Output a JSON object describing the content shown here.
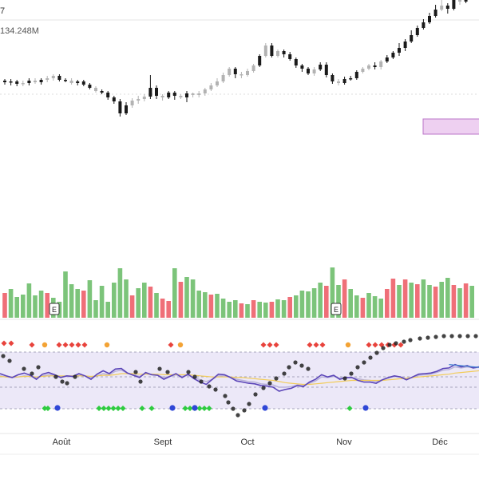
{
  "header": {
    "title_fragment": "7",
    "volume_label": "134.248M"
  },
  "x_axis": {
    "months": [
      "Août",
      "Sept",
      "Oct",
      "Nov",
      "Déc"
    ]
  },
  "colors": {
    "up": "#1a1a1a",
    "down": "#b3b3b3",
    "vol_up": "#7cc47a",
    "vol_down": "#ef6f78",
    "band": "#ece8f8",
    "line_primary": "#5b45b8",
    "line_secondary": "#b7b0d8",
    "line_avg": "#f2cc5a",
    "line_blue": "#3f7fd0",
    "highlight_fill": "#ecc8ef",
    "highlight_stroke": "#b05cbf",
    "dot_red": "#e8433c",
    "dot_orange": "#f3a335",
    "dot_green": "#2ecc40",
    "dot_blue": "#2f47d6",
    "dot_black": "#222222"
  },
  "chart_data": [
    {
      "type": "candlestick",
      "title": "",
      "volume_label": "134.248M",
      "event_markers": [
        "E",
        "E"
      ],
      "candles": [
        [
          0,
          289,
          287,
          284,
          291,
          1
        ],
        [
          1,
          287,
          288,
          283,
          291,
          1
        ],
        [
          2,
          288,
          285,
          282,
          290,
          1
        ],
        [
          3,
          285,
          286,
          282,
          289,
          0
        ],
        [
          4,
          286,
          289,
          283,
          292,
          1
        ],
        [
          5,
          289,
          287,
          285,
          292,
          0
        ],
        [
          6,
          287,
          290,
          284,
          292,
          1
        ],
        [
          7,
          290,
          292,
          287,
          295,
          0
        ],
        [
          8,
          292,
          295,
          289,
          297,
          0
        ],
        [
          9,
          295,
          290,
          288,
          297,
          1
        ],
        [
          10,
          290,
          289,
          287,
          292,
          1
        ],
        [
          11,
          289,
          286,
          284,
          292,
          0
        ],
        [
          12,
          286,
          288,
          283,
          290,
          1
        ],
        [
          13,
          288,
          284,
          282,
          290,
          1
        ],
        [
          14,
          284,
          280,
          278,
          286,
          1
        ],
        [
          15,
          280,
          276,
          274,
          282,
          0
        ],
        [
          16,
          276,
          274,
          272,
          278,
          1
        ],
        [
          17,
          274,
          268,
          265,
          276,
          1
        ],
        [
          18,
          268,
          263,
          260,
          270,
          1
        ],
        [
          19,
          263,
          248,
          244,
          266,
          1
        ],
        [
          20,
          248,
          258,
          246,
          262,
          1
        ],
        [
          21,
          258,
          264,
          255,
          267,
          0
        ],
        [
          22,
          264,
          266,
          260,
          270,
          0
        ],
        [
          23,
          266,
          269,
          263,
          272,
          0
        ],
        [
          24,
          269,
          280,
          266,
          296,
          1
        ],
        [
          25,
          280,
          270,
          266,
          283,
          1
        ],
        [
          26,
          270,
          268,
          264,
          272,
          0
        ],
        [
          27,
          268,
          274,
          266,
          276,
          1
        ],
        [
          28,
          274,
          270,
          265,
          276,
          1
        ],
        [
          29,
          270,
          268,
          266,
          272,
          0
        ],
        [
          30,
          268,
          273,
          262,
          276,
          1
        ],
        [
          31,
          273,
          271,
          268,
          274,
          0
        ],
        [
          32,
          271,
          273,
          268,
          276,
          0
        ],
        [
          33,
          273,
          278,
          270,
          280,
          0
        ],
        [
          34,
          278,
          283,
          276,
          286,
          0
        ],
        [
          35,
          283,
          288,
          281,
          292,
          0
        ],
        [
          36,
          288,
          296,
          286,
          299,
          0
        ],
        [
          37,
          296,
          304,
          294,
          306,
          0
        ],
        [
          38,
          304,
          297,
          292,
          306,
          1
        ],
        [
          39,
          297,
          296,
          292,
          300,
          0
        ],
        [
          40,
          296,
          301,
          294,
          304,
          0
        ],
        [
          41,
          301,
          308,
          299,
          310,
          0
        ],
        [
          42,
          308,
          320,
          306,
          322,
          1
        ],
        [
          43,
          320,
          333,
          318,
          336,
          0
        ],
        [
          44,
          333,
          320,
          318,
          336,
          1
        ],
        [
          45,
          320,
          326,
          318,
          328,
          0
        ],
        [
          46,
          326,
          322,
          318,
          328,
          1
        ],
        [
          47,
          322,
          316,
          314,
          325,
          1
        ],
        [
          48,
          316,
          308,
          305,
          318,
          1
        ],
        [
          49,
          308,
          304,
          300,
          310,
          1
        ],
        [
          50,
          304,
          298,
          296,
          306,
          1
        ],
        [
          51,
          298,
          303,
          295,
          306,
          0
        ],
        [
          52,
          303,
          309,
          301,
          312,
          1
        ],
        [
          53,
          309,
          296,
          293,
          312,
          1
        ],
        [
          54,
          296,
          288,
          285,
          298,
          1
        ],
        [
          55,
          288,
          286,
          283,
          291,
          0
        ],
        [
          56,
          286,
          291,
          284,
          294,
          1
        ],
        [
          57,
          291,
          292,
          289,
          295,
          1
        ],
        [
          58,
          292,
          300,
          290,
          302,
          1
        ],
        [
          59,
          300,
          304,
          298,
          306,
          0
        ],
        [
          60,
          304,
          308,
          302,
          310,
          0
        ],
        [
          61,
          308,
          306,
          303,
          312,
          1
        ],
        [
          62,
          306,
          313,
          303,
          315,
          0
        ],
        [
          63,
          313,
          318,
          311,
          321,
          1
        ],
        [
          64,
          318,
          324,
          316,
          326,
          1
        ],
        [
          65,
          324,
          330,
          320,
          336,
          1
        ],
        [
          66,
          330,
          338,
          326,
          341,
          1
        ],
        [
          67,
          338,
          346,
          336,
          352,
          1
        ],
        [
          68,
          346,
          355,
          344,
          358,
          1
        ],
        [
          69,
          355,
          362,
          353,
          366,
          1
        ],
        [
          70,
          362,
          370,
          360,
          374,
          1
        ],
        [
          71,
          370,
          378,
          368,
          384,
          1
        ],
        [
          72,
          378,
          383,
          376,
          392,
          0
        ],
        [
          73,
          383,
          379,
          373,
          386,
          1
        ],
        [
          74,
          379,
          390,
          377,
          395,
          1
        ],
        [
          75,
          390,
          388,
          384,
          392,
          0
        ],
        [
          76,
          388,
          395,
          386,
          402,
          1
        ],
        [
          77,
          395,
          398,
          392,
          406,
          1
        ]
      ],
      "volumes": [
        [
          0,
          31,
          0
        ],
        [
          1,
          36,
          1
        ],
        [
          2,
          26,
          1
        ],
        [
          3,
          29,
          1
        ],
        [
          4,
          43,
          1
        ],
        [
          5,
          28,
          1
        ],
        [
          6,
          34,
          1
        ],
        [
          7,
          31,
          0
        ],
        [
          8,
          25,
          1
        ],
        [
          9,
          20,
          1
        ],
        [
          10,
          58,
          1
        ],
        [
          11,
          42,
          1
        ],
        [
          12,
          36,
          1
        ],
        [
          13,
          34,
          0
        ],
        [
          14,
          47,
          1
        ],
        [
          15,
          22,
          1
        ],
        [
          16,
          40,
          1
        ],
        [
          17,
          20,
          1
        ],
        [
          18,
          44,
          1
        ],
        [
          19,
          62,
          1
        ],
        [
          20,
          48,
          1
        ],
        [
          21,
          28,
          0
        ],
        [
          22,
          37,
          1
        ],
        [
          23,
          44,
          1
        ],
        [
          24,
          39,
          0
        ],
        [
          25,
          31,
          1
        ],
        [
          26,
          24,
          0
        ],
        [
          27,
          21,
          0
        ],
        [
          28,
          62,
          1
        ],
        [
          29,
          45,
          0
        ],
        [
          30,
          51,
          1
        ],
        [
          31,
          48,
          1
        ],
        [
          32,
          34,
          1
        ],
        [
          33,
          32,
          1
        ],
        [
          34,
          29,
          0
        ],
        [
          35,
          30,
          1
        ],
        [
          36,
          24,
          1
        ],
        [
          37,
          20,
          1
        ],
        [
          38,
          22,
          1
        ],
        [
          39,
          18,
          0
        ],
        [
          40,
          17,
          1
        ],
        [
          41,
          22,
          0
        ],
        [
          42,
          20,
          1
        ],
        [
          43,
          19,
          1
        ],
        [
          44,
          20,
          0
        ],
        [
          45,
          23,
          1
        ],
        [
          46,
          22,
          1
        ],
        [
          47,
          26,
          0
        ],
        [
          48,
          28,
          1
        ],
        [
          49,
          34,
          1
        ],
        [
          50,
          33,
          1
        ],
        [
          51,
          37,
          1
        ],
        [
          52,
          44,
          1
        ],
        [
          53,
          40,
          0
        ],
        [
          54,
          63,
          1
        ],
        [
          55,
          41,
          1
        ],
        [
          56,
          48,
          0
        ],
        [
          57,
          36,
          1
        ],
        [
          58,
          28,
          1
        ],
        [
          59,
          25,
          0
        ],
        [
          60,
          31,
          1
        ],
        [
          61,
          27,
          1
        ],
        [
          62,
          24,
          1
        ],
        [
          63,
          36,
          0
        ],
        [
          64,
          49,
          0
        ],
        [
          65,
          41,
          1
        ],
        [
          66,
          48,
          0
        ],
        [
          67,
          44,
          1
        ],
        [
          68,
          42,
          0
        ],
        [
          69,
          48,
          1
        ],
        [
          70,
          41,
          1
        ],
        [
          71,
          39,
          0
        ],
        [
          72,
          45,
          1
        ],
        [
          73,
          50,
          1
        ],
        [
          74,
          41,
          0
        ],
        [
          75,
          37,
          1
        ],
        [
          76,
          43,
          0
        ],
        [
          77,
          40,
          1
        ]
      ]
    },
    {
      "type": "line",
      "title": "",
      "ylim": [
        0,
        100
      ],
      "series": [
        {
          "values": [
            62,
            58,
            55,
            60,
            63,
            59,
            52,
            61,
            64,
            60,
            55,
            58,
            57,
            62,
            58,
            52,
            61,
            67,
            62,
            70,
            71,
            63,
            59,
            55,
            64,
            60,
            59,
            52,
            57,
            62,
            55,
            61,
            53,
            47,
            43,
            52,
            61,
            60,
            55,
            49,
            47,
            45,
            44,
            41,
            40,
            38,
            31,
            34,
            36,
            41,
            39,
            47,
            52,
            60,
            56,
            59,
            52,
            55,
            55,
            50,
            47,
            47,
            45,
            51,
            55,
            58,
            56,
            51,
            56,
            61,
            62,
            63,
            66,
            71,
            72,
            78,
            74,
            76,
            72,
            74,
            70
          ]
        },
        {
          "values": [
            58,
            56,
            55,
            56,
            58,
            57,
            55,
            58,
            60,
            59,
            57,
            57,
            57,
            59,
            58,
            55,
            58,
            62,
            60,
            66,
            68,
            63,
            60,
            57,
            62,
            60,
            59,
            55,
            57,
            60,
            57,
            59,
            55,
            51,
            48,
            52,
            58,
            58,
            56,
            52,
            50,
            48,
            47,
            44,
            43,
            42,
            38,
            38,
            39,
            42,
            41,
            45,
            49,
            56,
            55,
            57,
            54,
            55,
            55,
            53,
            51,
            50,
            48,
            51,
            54,
            57,
            56,
            53,
            55,
            59,
            60,
            61,
            64,
            68,
            69,
            74,
            72,
            74,
            72,
            73,
            71
          ]
        },
        {
          "values": [
            57,
            56,
            56,
            56,
            57,
            57,
            56,
            57,
            58,
            58,
            58,
            58,
            58,
            58,
            58,
            57,
            58,
            59,
            59,
            60,
            62,
            62,
            62,
            61,
            61,
            61,
            61,
            60,
            60,
            60,
            60,
            60,
            59,
            58,
            57,
            56,
            56,
            56,
            56,
            55,
            55,
            54,
            53,
            52,
            51,
            50,
            48,
            46,
            45,
            44,
            43,
            43,
            44,
            45,
            46,
            47,
            48,
            49,
            50,
            50,
            50,
            50,
            50,
            50,
            51,
            52,
            53,
            54,
            55,
            56,
            57,
            58,
            59,
            60,
            61,
            63,
            64,
            65,
            66,
            67,
            68
          ]
        },
        {
          "values": [
            null,
            null,
            null,
            null,
            null,
            null,
            null,
            null,
            null,
            null,
            null,
            null,
            null,
            null,
            null,
            null,
            null,
            null,
            null,
            null,
            null,
            null,
            null,
            null,
            null,
            null,
            null,
            null,
            null,
            null,
            null,
            null,
            null,
            null,
            null,
            null,
            null,
            null,
            null,
            null,
            null,
            null,
            null,
            null,
            null,
            null,
            null,
            null,
            null,
            null,
            null,
            null,
            null,
            null,
            null,
            null,
            null,
            null,
            null,
            null,
            null,
            null,
            null,
            null,
            null,
            null,
            null,
            null,
            null,
            null,
            null,
            null,
            null,
            null,
            78,
            77,
            76,
            75,
            74,
            73,
            72
          ]
        }
      ]
    }
  ]
}
